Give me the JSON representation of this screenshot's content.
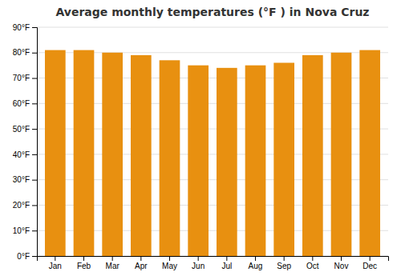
{
  "chart_data": {
    "type": "bar",
    "title": "Average monthly temperatures (°F ) in Nova Cruz",
    "categories": [
      "Jan",
      "Feb",
      "Mar",
      "Apr",
      "May",
      "Jun",
      "Jul",
      "Aug",
      "Sep",
      "Oct",
      "Nov",
      "Dec"
    ],
    "values": [
      81,
      81,
      80,
      79,
      77,
      75,
      74,
      75,
      76,
      79,
      80,
      81
    ],
    "color": "#E89010",
    "ylim": [
      0,
      90
    ],
    "yticks": [
      {
        "value": 0,
        "label": "0°F"
      },
      {
        "value": 10,
        "label": "10°F"
      },
      {
        "value": 20,
        "label": "20°F"
      },
      {
        "value": 30,
        "label": "30°F"
      },
      {
        "value": 40,
        "label": "40°F"
      },
      {
        "value": 50,
        "label": "50°F"
      },
      {
        "value": 60,
        "label": "60°F"
      },
      {
        "value": 70,
        "label": "70°F"
      },
      {
        "value": 80,
        "label": "80°F"
      },
      {
        "value": 90,
        "label": "90°F"
      }
    ],
    "grid": true
  }
}
